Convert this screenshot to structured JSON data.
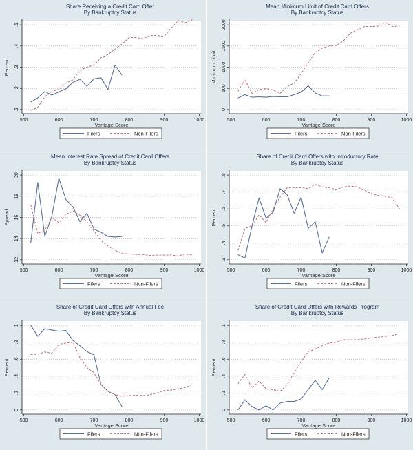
{
  "legend": {
    "filers": "Filers",
    "non_filers": "Non-Filers"
  },
  "colors": {
    "filers": "#5b6f96",
    "non_filers": "#c07a80",
    "grid": "#9aa8b2",
    "axis": "#222222",
    "plot_bg": "#ffffff"
  },
  "chart_data": [
    {
      "type": "line",
      "title": "Share Receiving a Credit Card Offer",
      "subtitle": "By Bankruptcy Status",
      "xlabel": "Vantage Score",
      "ylabel": "Percent",
      "xlim": [
        500,
        1000
      ],
      "ylim": [
        0.1,
        0.5
      ],
      "xticks": [
        500,
        600,
        700,
        800,
        900,
        1000
      ],
      "yticks": [
        0.1,
        0.2,
        0.3,
        0.4,
        0.5
      ],
      "ytick_labels": [
        ".1",
        ".2",
        ".3",
        ".4",
        ".5"
      ],
      "grid": true,
      "legend_position": "bottom",
      "series": [
        {
          "name": "Filers",
          "style": "solid",
          "x": [
            520,
            540,
            560,
            580,
            600,
            620,
            640,
            660,
            680,
            700,
            720,
            740,
            760,
            780
          ],
          "y": [
            0.135,
            0.155,
            0.185,
            0.168,
            0.183,
            0.198,
            0.228,
            0.243,
            0.21,
            0.245,
            0.25,
            0.195,
            0.31,
            0.262
          ]
        },
        {
          "name": "Non-Filers",
          "style": "dashed",
          "x": [
            520,
            540,
            560,
            580,
            600,
            620,
            640,
            660,
            680,
            700,
            720,
            740,
            760,
            780,
            800,
            820,
            840,
            860,
            880,
            900,
            920,
            940,
            960,
            980
          ],
          "y": [
            0.095,
            0.11,
            0.16,
            0.185,
            0.195,
            0.225,
            0.24,
            0.285,
            0.3,
            0.31,
            0.345,
            0.36,
            0.385,
            0.41,
            0.44,
            0.44,
            0.435,
            0.45,
            0.45,
            0.445,
            0.485,
            0.52,
            0.51,
            0.525
          ]
        }
      ]
    },
    {
      "type": "line",
      "title": "Mean Minimum Limit of Credit Card Offers",
      "subtitle": "By Bankruptcy Status",
      "xlabel": "Vantage Score",
      "ylabel": "Minimum Limit",
      "xlim": [
        500,
        1000
      ],
      "ylim": [
        0,
        2000
      ],
      "xticks": [
        500,
        600,
        700,
        800,
        900,
        1000
      ],
      "yticks": [
        0,
        500,
        1000,
        1500,
        2000
      ],
      "ytick_labels": [
        "0",
        "500",
        "1000",
        "1500",
        "2000"
      ],
      "grid": true,
      "legend_position": "bottom",
      "series": [
        {
          "name": "Filers",
          "style": "solid",
          "x": [
            520,
            540,
            560,
            580,
            600,
            620,
            640,
            660,
            680,
            700,
            720,
            740,
            760,
            780
          ],
          "y": [
            270,
            350,
            290,
            300,
            290,
            305,
            300,
            300,
            350,
            410,
            560,
            390,
            320,
            320
          ]
        },
        {
          "name": "Non-Filers",
          "style": "dashed",
          "x": [
            520,
            540,
            560,
            580,
            600,
            620,
            640,
            660,
            680,
            700,
            720,
            740,
            760,
            780,
            800,
            820,
            840,
            860,
            880,
            900,
            920,
            940,
            960,
            980
          ],
          "y": [
            430,
            700,
            380,
            470,
            490,
            460,
            380,
            540,
            620,
            850,
            1100,
            1350,
            1450,
            1500,
            1510,
            1620,
            1800,
            1880,
            1960,
            1960,
            1970,
            2060,
            1960,
            1970
          ]
        }
      ]
    },
    {
      "type": "line",
      "title": "Mean Interest Rate Spread of Credit Card Offers",
      "subtitle": "By Bankruptcy Status",
      "xlabel": "Vantage Score",
      "ylabel": "Spread",
      "xlim": [
        500,
        1000
      ],
      "ylim": [
        12,
        20
      ],
      "xticks": [
        500,
        600,
        700,
        800,
        900,
        1000
      ],
      "yticks": [
        12,
        14,
        16,
        18,
        20
      ],
      "ytick_labels": [
        "12",
        "14",
        "16",
        "18",
        "20"
      ],
      "grid": true,
      "legend_position": "bottom",
      "series": [
        {
          "name": "Filers",
          "style": "solid",
          "x": [
            520,
            540,
            560,
            580,
            600,
            620,
            640,
            660,
            680,
            700,
            720,
            740,
            760,
            780
          ],
          "y": [
            13.6,
            19.3,
            14.2,
            16.1,
            19.7,
            17.7,
            17.0,
            15.6,
            16.4,
            14.9,
            14.6,
            14.2,
            14.15,
            14.2
          ]
        },
        {
          "name": "Non-Filers",
          "style": "dashed",
          "x": [
            520,
            540,
            560,
            580,
            600,
            620,
            640,
            660,
            680,
            700,
            720,
            740,
            760,
            780,
            800,
            820,
            840,
            860,
            880,
            900,
            920,
            940,
            960,
            980
          ],
          "y": [
            17.2,
            14.5,
            14.8,
            16.0,
            15.5,
            16.3,
            16.6,
            16.2,
            15.6,
            14.7,
            13.8,
            13.3,
            12.9,
            12.6,
            12.55,
            12.5,
            12.5,
            12.4,
            12.45,
            12.45,
            12.45,
            12.35,
            12.55,
            12.45
          ]
        }
      ]
    },
    {
      "type": "line",
      "title": "Share of Credit Card Offers with Introductory Rate",
      "subtitle": "By Bankruptcy Status",
      "xlabel": "Vantage Score",
      "ylabel": "Percent",
      "xlim": [
        500,
        1000
      ],
      "ylim": [
        0.3,
        0.8
      ],
      "xticks": [
        500,
        600,
        700,
        800,
        900,
        1000
      ],
      "yticks": [
        0.3,
        0.4,
        0.5,
        0.6,
        0.7,
        0.8
      ],
      "ytick_labels": [
        ".3",
        ".4",
        ".5",
        ".6",
        ".7",
        ".8"
      ],
      "grid": true,
      "legend_position": "bottom",
      "series": [
        {
          "name": "Filers",
          "style": "solid",
          "x": [
            520,
            540,
            560,
            580,
            600,
            620,
            640,
            660,
            680,
            700,
            720,
            740,
            760,
            780
          ],
          "y": [
            0.33,
            0.31,
            0.5,
            0.665,
            0.545,
            0.58,
            0.72,
            0.685,
            0.575,
            0.67,
            0.485,
            0.525,
            0.34,
            0.435
          ]
        },
        {
          "name": "Non-Filers",
          "style": "dashed",
          "x": [
            520,
            540,
            560,
            580,
            600,
            620,
            640,
            660,
            680,
            700,
            720,
            740,
            760,
            780,
            800,
            820,
            840,
            860,
            880,
            900,
            920,
            940,
            960,
            980
          ],
          "y": [
            0.355,
            0.485,
            0.5,
            0.565,
            0.52,
            0.6,
            0.67,
            0.725,
            0.725,
            0.725,
            0.72,
            0.745,
            0.73,
            0.725,
            0.715,
            0.73,
            0.735,
            0.73,
            0.71,
            0.69,
            0.68,
            0.675,
            0.665,
            0.6
          ]
        }
      ]
    },
    {
      "type": "line",
      "title": "Share of Credit Card Offers with Annual Fee",
      "subtitle": "By Bankruptcy Status",
      "xlabel": "Vantage Score",
      "ylabel": "Percent",
      "xlim": [
        500,
        1000
      ],
      "ylim": [
        0,
        1
      ],
      "xticks": [
        500,
        600,
        700,
        800,
        900,
        1000
      ],
      "yticks": [
        0,
        0.2,
        0.4,
        0.6,
        0.8,
        1
      ],
      "ytick_labels": [
        "0",
        ".2",
        ".4",
        ".6",
        ".8",
        "1"
      ],
      "grid": true,
      "legend_position": "bottom",
      "series": [
        {
          "name": "Filers",
          "style": "solid",
          "x": [
            520,
            540,
            560,
            580,
            600,
            620,
            640,
            660,
            680,
            700,
            720,
            740,
            760,
            780
          ],
          "y": [
            1.0,
            0.87,
            0.96,
            0.945,
            0.93,
            0.94,
            0.82,
            0.76,
            0.69,
            0.65,
            0.3,
            0.22,
            0.18,
            0.04
          ]
        },
        {
          "name": "Non-Filers",
          "style": "dashed",
          "x": [
            520,
            540,
            560,
            580,
            600,
            620,
            640,
            660,
            680,
            700,
            720,
            740,
            760,
            780,
            800,
            820,
            840,
            860,
            880,
            900,
            920,
            940,
            960,
            980
          ],
          "y": [
            0.655,
            0.66,
            0.685,
            0.67,
            0.775,
            0.79,
            0.8,
            0.62,
            0.5,
            0.44,
            0.3,
            0.22,
            0.18,
            0.16,
            0.17,
            0.175,
            0.17,
            0.18,
            0.2,
            0.23,
            0.235,
            0.25,
            0.265,
            0.3
          ]
        }
      ]
    },
    {
      "type": "line",
      "title": "Share of Credit Card Offers with Rewards Program",
      "subtitle": "By Bankruptcy Status",
      "xlabel": "Vantage Score",
      "ylabel": "Percent",
      "xlim": [
        500,
        1000
      ],
      "ylim": [
        0,
        1
      ],
      "xticks": [
        500,
        600,
        700,
        800,
        900,
        1000
      ],
      "yticks": [
        0,
        0.2,
        0.4,
        0.6,
        0.8,
        1
      ],
      "ytick_labels": [
        "0",
        ".2",
        ".4",
        ".6",
        ".8",
        "1"
      ],
      "grid": true,
      "legend_position": "bottom",
      "series": [
        {
          "name": "Filers",
          "style": "solid",
          "x": [
            520,
            540,
            560,
            580,
            600,
            620,
            640,
            660,
            680,
            700,
            720,
            740,
            760,
            780
          ],
          "y": [
            0.0,
            0.12,
            0.04,
            0.0,
            0.05,
            0.0,
            0.08,
            0.1,
            0.1,
            0.13,
            0.24,
            0.35,
            0.24,
            0.38
          ]
        },
        {
          "name": "Non-Filers",
          "style": "dashed",
          "x": [
            520,
            540,
            560,
            580,
            600,
            620,
            640,
            660,
            680,
            700,
            720,
            740,
            760,
            780,
            800,
            820,
            840,
            860,
            880,
            900,
            920,
            940,
            960,
            980
          ],
          "y": [
            0.31,
            0.42,
            0.26,
            0.34,
            0.25,
            0.24,
            0.22,
            0.3,
            0.44,
            0.57,
            0.69,
            0.72,
            0.76,
            0.79,
            0.8,
            0.83,
            0.83,
            0.83,
            0.84,
            0.85,
            0.86,
            0.87,
            0.88,
            0.9
          ]
        }
      ]
    }
  ]
}
